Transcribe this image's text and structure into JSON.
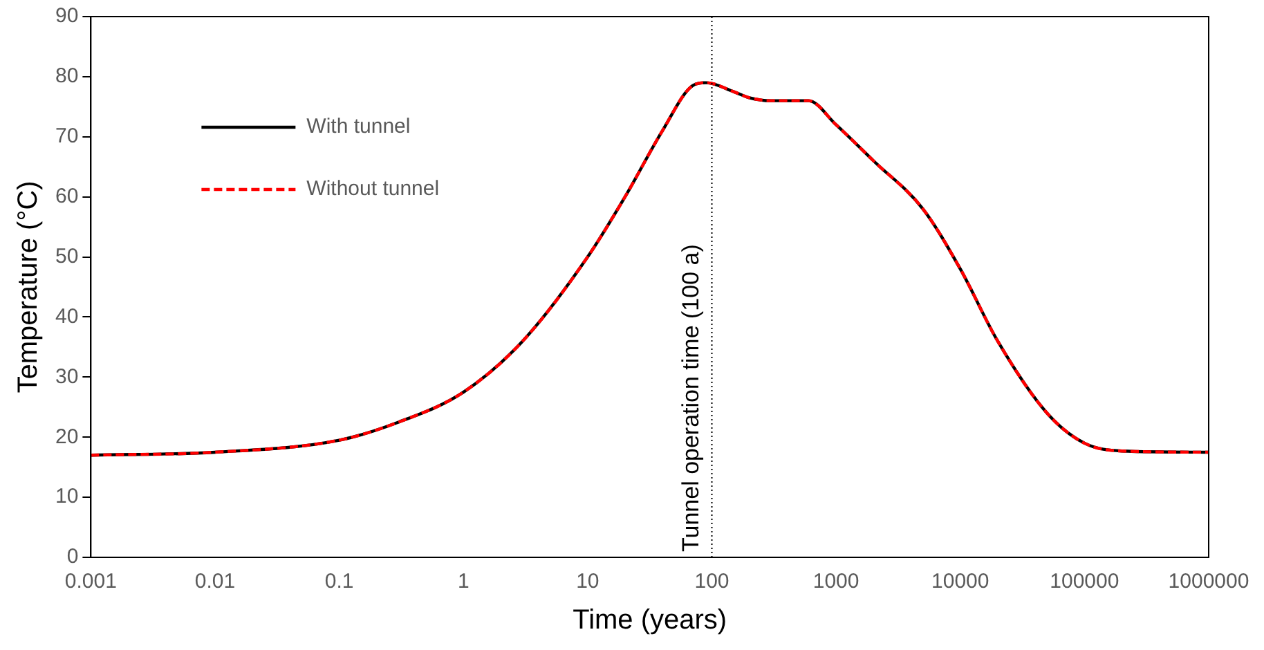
{
  "chart_data": {
    "type": "line",
    "xlabel": "Time (years)",
    "ylabel": "Temperature (°C)",
    "log": "x",
    "xlim": [
      0.001,
      1000000
    ],
    "xticks": [
      0.001,
      0.01,
      0.1,
      1,
      10,
      100,
      1000,
      10000,
      100000,
      1000000
    ],
    "ylim": [
      0,
      90
    ],
    "yticks": [
      0,
      10,
      20,
      30,
      40,
      50,
      60,
      70,
      80,
      90
    ],
    "grid": false,
    "legend": "top left",
    "series": [
      {
        "name": "With tunnel",
        "color": "#000000",
        "line_style": "solid",
        "x": [
          0.001,
          0.01,
          0.1,
          0.3,
          1,
          3,
          10,
          20,
          40,
          70,
          90,
          150,
          200,
          300,
          600,
          1000,
          2000,
          5000,
          10000,
          20000,
          50000,
          100000,
          200000,
          1000000
        ],
        "values": [
          17,
          17.5,
          19.5,
          22.5,
          27.5,
          36,
          50,
          60,
          71,
          78.5,
          79,
          77.5,
          76.5,
          76,
          76,
          72,
          66,
          58,
          48,
          36,
          24,
          19,
          17.7,
          17.5
        ]
      },
      {
        "name": "Without tunnel",
        "color": "#ff0000",
        "line_style": "dashed",
        "x": [
          0.001,
          0.01,
          0.1,
          0.3,
          1,
          3,
          10,
          20,
          40,
          70,
          90,
          150,
          200,
          300,
          600,
          1000,
          2000,
          5000,
          10000,
          20000,
          50000,
          100000,
          200000,
          1000000
        ],
        "values": [
          17,
          17.5,
          19.5,
          22.5,
          27.5,
          36,
          50,
          60,
          71,
          78.5,
          79,
          77.5,
          76.5,
          76,
          76,
          72,
          66,
          58,
          48,
          36,
          24,
          19,
          17.7,
          17.5
        ]
      }
    ],
    "ref_lines": [
      {
        "axis": "x",
        "value": 100,
        "label": "Tunnel operation time (100 a)",
        "color": "#000000",
        "line_style": "dotted"
      }
    ]
  }
}
